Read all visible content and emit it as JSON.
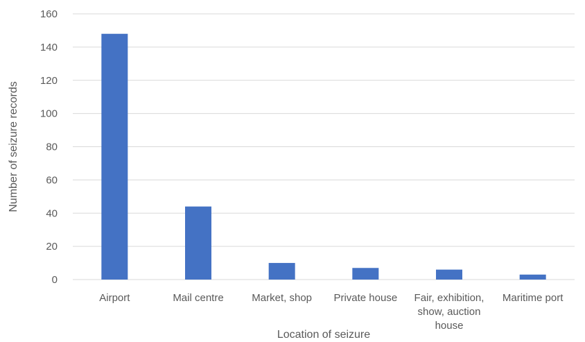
{
  "chart_data": {
    "type": "bar",
    "categories": [
      [
        "Airport"
      ],
      [
        "Mail centre"
      ],
      [
        "Market, shop"
      ],
      [
        "Private house"
      ],
      [
        "Fair, exhibition,",
        "show, auction",
        "house"
      ],
      [
        "Maritime port"
      ]
    ],
    "values": [
      148,
      44,
      10,
      7,
      6,
      3
    ],
    "xlabel": "Location of seizure",
    "ylabel": "Number of seizure records",
    "ylim": [
      0,
      160
    ],
    "yticks": [
      0,
      20,
      40,
      60,
      80,
      100,
      120,
      140,
      160
    ],
    "grid": true,
    "legend": "none",
    "colors": {
      "bar": "#4472C4",
      "grid": "#D9D9D9",
      "text": "#595959"
    }
  }
}
